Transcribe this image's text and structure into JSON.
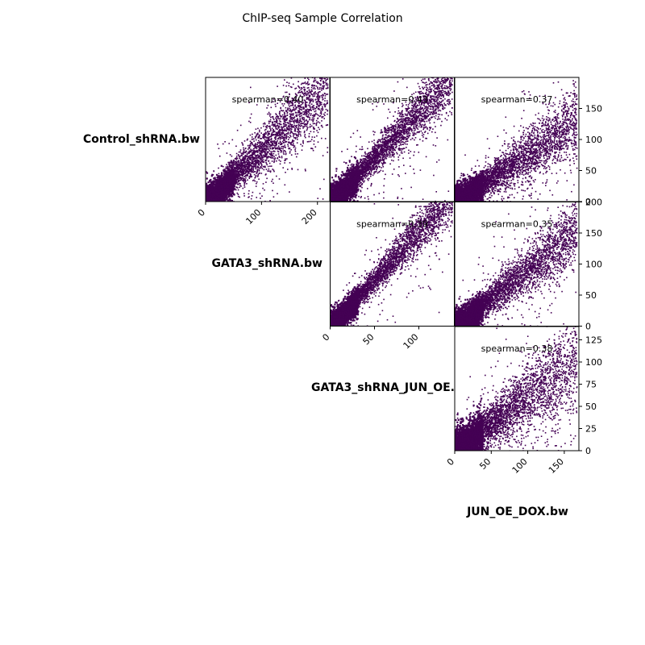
{
  "chart_data": {
    "type": "scatter",
    "title": "ChIP-seq Sample Correlation",
    "samples": [
      "Control_shRNA.bw",
      "GATA3_shRNA.bw",
      "GATA3_shRNA_JUN_OE.",
      "JUN_OE_DOX.bw"
    ],
    "point_color": "#440154",
    "panels": [
      {
        "row": 0,
        "col": 1,
        "label": "spearman=0.40",
        "xlim": [
          0,
          222
        ],
        "ylim": [
          0,
          200
        ],
        "xticks": [
          0,
          100,
          200
        ],
        "yticks": [],
        "slope": 0.85
      },
      {
        "row": 0,
        "col": 2,
        "label": "spearman=0.43",
        "xlim": [
          0,
          140
        ],
        "ylim": [
          0,
          200
        ],
        "xticks": [],
        "yticks": [],
        "slope": 1.45
      },
      {
        "row": 0,
        "col": 3,
        "label": "spearman=0.37",
        "xlim": [
          0,
          170
        ],
        "ylim": [
          0,
          200
        ],
        "xticks": [],
        "yticks": [
          0,
          50,
          100,
          150
        ],
        "slope": 0.78
      },
      {
        "row": 1,
        "col": 2,
        "label": "spearman=0.39",
        "xlim": [
          0,
          140
        ],
        "ylim": [
          0,
          222
        ],
        "xticks": [
          0,
          50,
          100
        ],
        "yticks": [],
        "slope": 1.7
      },
      {
        "row": 1,
        "col": 3,
        "label": "spearman=0.35",
        "xlim": [
          0,
          170
        ],
        "ylim": [
          0,
          200
        ],
        "xticks": [],
        "yticks": [
          0,
          50,
          100,
          150,
          200
        ],
        "slope": 0.92
      },
      {
        "row": 2,
        "col": 3,
        "label": "spearman=0.38",
        "xlim": [
          0,
          170
        ],
        "ylim": [
          0,
          140
        ],
        "xticks": [
          0,
          50,
          100,
          150
        ],
        "yticks": [
          0,
          25,
          50,
          75,
          100,
          125
        ],
        "slope": 0.62
      }
    ]
  }
}
